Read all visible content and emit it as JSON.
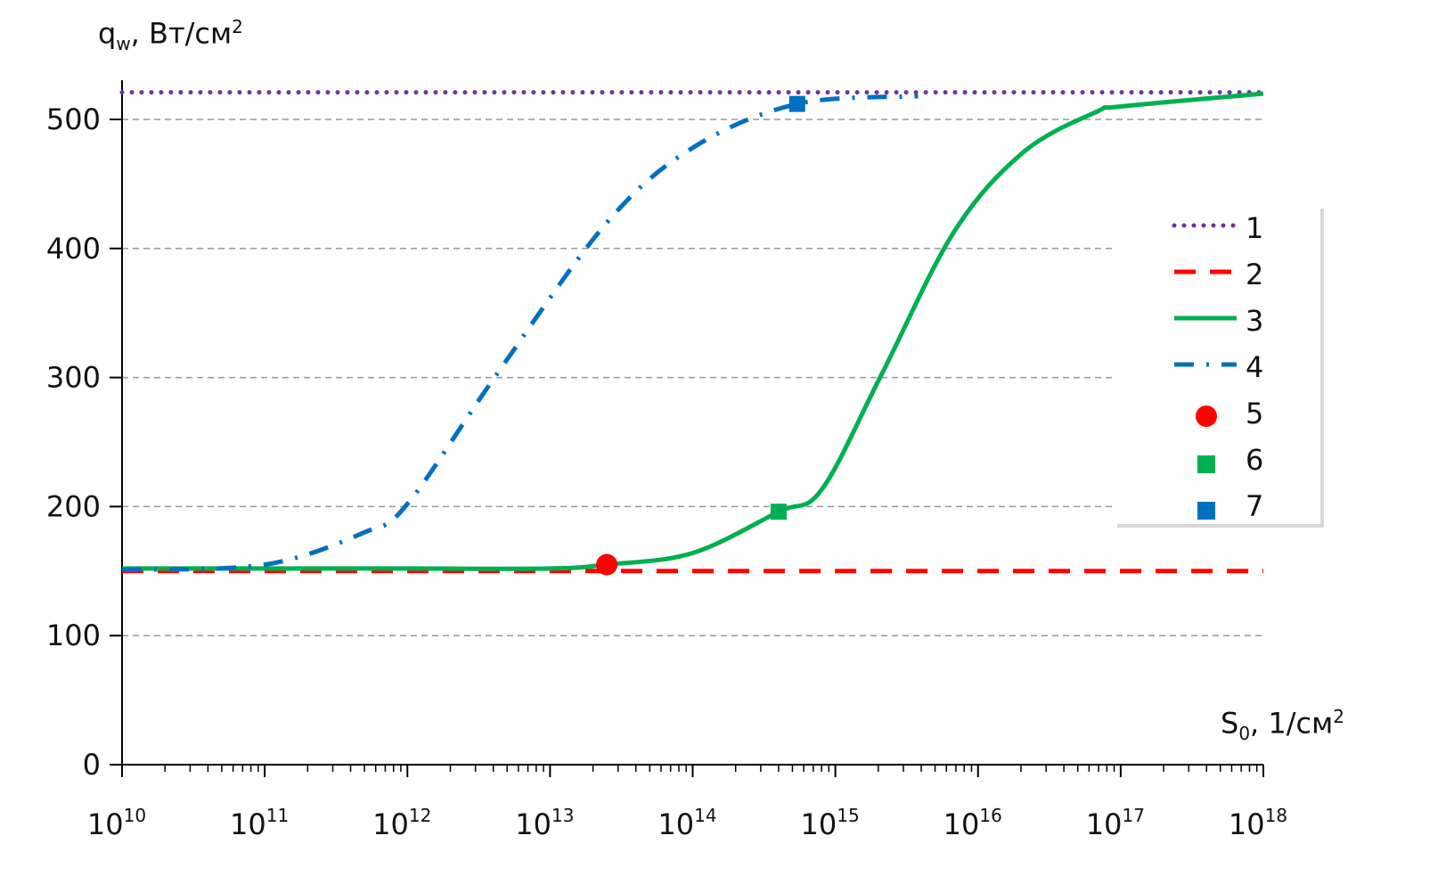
{
  "chart_data": {
    "type": "line",
    "title": "",
    "ylabel": {
      "main": "q",
      "sub": "w",
      "rest": ",  Вт/см",
      "sup": "2"
    },
    "xlabel": {
      "main": "S",
      "sub": "0",
      "rest": ", 1/см",
      "sup": "2"
    },
    "x_scale": "log",
    "xlim": [
      10000000000.0,
      1e+18
    ],
    "ylim": [
      0,
      500
    ],
    "x_ticks": [
      10,
      11,
      12,
      13,
      14,
      15,
      16,
      17,
      18
    ],
    "x_tick_base": "10",
    "y_ticks": [
      "0",
      "100",
      "200",
      "300",
      "400",
      "500"
    ],
    "grid": "horizontal dashed",
    "legend_position": "right",
    "series": [
      {
        "name": "1",
        "style": "dotted",
        "color": "#7030A0",
        "x": [
          10000000000.0,
          1e+18
        ],
        "y": [
          521,
          521
        ]
      },
      {
        "name": "2",
        "style": "dashed",
        "color": "#FF0000",
        "x": [
          10000000000.0,
          1e+18
        ],
        "y": [
          150,
          150
        ]
      },
      {
        "name": "3",
        "style": "solid",
        "color": "#00B050",
        "x": [
          10000000000.0,
          100000000000.0,
          1000000000000.0,
          10000000000000.0,
          25000000000000.0,
          100000000000000.0,
          400000000000000.0,
          800000000000000.0,
          2100000000000000.0,
          6800000000000000.0,
          2.1e+16,
          6.8e+16,
          1e+17,
          1e+18
        ],
        "y": [
          152,
          152,
          152,
          152,
          155,
          164,
          196,
          213,
          302,
          413,
          475,
          506,
          510,
          520
        ]
      },
      {
        "name": "4",
        "style": "dash-dot",
        "color": "#0070C0",
        "x": [
          10000000000.0,
          100000000000.0,
          500000000000.0,
          1000000000000.0,
          4200000000000.0,
          25000000000000.0,
          100000000000000.0,
          540000000000000.0,
          3800000000000000.0
        ],
        "y": [
          151,
          155,
          180,
          202,
          302,
          420,
          478,
          512,
          518
        ]
      },
      {
        "name": "5",
        "style": "marker-circle",
        "color": "#FF0000",
        "x": [
          25000000000000.0
        ],
        "y": [
          155
        ]
      },
      {
        "name": "6",
        "style": "marker-square",
        "color": "#00B050",
        "x": [
          400000000000000.0
        ],
        "y": [
          196
        ]
      },
      {
        "name": "7",
        "style": "marker-square",
        "color": "#0070C0",
        "x": [
          540000000000000.0
        ],
        "y": [
          512
        ]
      }
    ]
  }
}
